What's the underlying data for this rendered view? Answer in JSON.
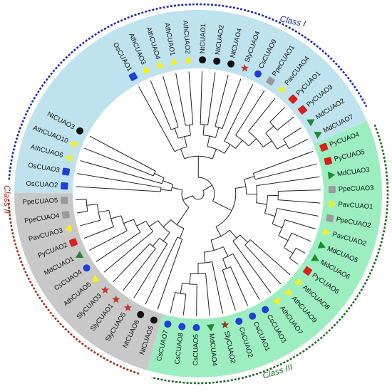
{
  "colors": {
    "class1_bg": "#bfe3ee",
    "class2_bg": "#c8c8c8",
    "class3_bg": "#9ceec0",
    "class1_arc": "#1a2fb0",
    "class2_arc": "#a8331b",
    "class3_arc": "#1f6e1f",
    "branch": "#222222",
    "markers": {
      "circle-blue": "#1f3fd9",
      "square-blue": "#1f3fd9",
      "circle-black": "#111111",
      "triangle-yellow": "#f4ef23",
      "triangle-green": "#1e8a2a",
      "star-red": "#c0392b",
      "star-brown": "#8b3a1a",
      "square-gray": "#9a9a9a",
      "square-red": "#d81e1e"
    }
  },
  "classes": [
    {
      "label": "Class I",
      "color": "#1a2fb0"
    },
    {
      "label": "Class II",
      "color": "#a8331b"
    },
    {
      "label": "Class III",
      "color": "#1f6e1f"
    }
  ],
  "leaves": [
    {
      "name": "OsCUAO1",
      "marker": "square-blue"
    },
    {
      "name": "AthCUAO3",
      "marker": "triangle-yellow"
    },
    {
      "name": "AthCUAO4",
      "marker": "triangle-yellow"
    },
    {
      "name": "AthCUAO1",
      "marker": "triangle-yellow"
    },
    {
      "name": "AthCUAO2",
      "marker": "triangle-yellow"
    },
    {
      "name": "NtCUAO1",
      "marker": "circle-black"
    },
    {
      "name": "NtCUAO2",
      "marker": "circle-black"
    },
    {
      "name": "NtCUAO4",
      "marker": "circle-black"
    },
    {
      "name": "SlyCUAO4",
      "marker": "star-red"
    },
    {
      "name": "CsCUAO9",
      "marker": "circle-blue"
    },
    {
      "name": "PpeCUAO1",
      "marker": "square-gray"
    },
    {
      "name": "PavCUAO4",
      "marker": "triangle-yellow"
    },
    {
      "name": "PyCUAO1",
      "marker": "square-red"
    },
    {
      "name": "PyCUAO3",
      "marker": "square-red"
    },
    {
      "name": "MdCUAO2",
      "marker": "triangle-green"
    },
    {
      "name": "MdCUAO7",
      "marker": "triangle-green"
    },
    {
      "name": "PyCUAO4",
      "marker": "square-red"
    },
    {
      "name": "PyCUAO5",
      "marker": "square-red"
    },
    {
      "name": "MdCUAO3",
      "marker": "triangle-green"
    },
    {
      "name": "PpeCUAO3",
      "marker": "square-gray"
    },
    {
      "name": "PavCUAO1",
      "marker": "triangle-yellow"
    },
    {
      "name": "PpeCUAO2",
      "marker": "square-gray"
    },
    {
      "name": "PavCUAO2",
      "marker": "triangle-yellow"
    },
    {
      "name": "MdCUAO5",
      "marker": "triangle-green"
    },
    {
      "name": "MdCUAO6",
      "marker": "triangle-green"
    },
    {
      "name": "PyCUAO6",
      "marker": "square-red"
    },
    {
      "name": "AthCUAO8",
      "marker": "triangle-yellow"
    },
    {
      "name": "AthCUAO9",
      "marker": "triangle-yellow"
    },
    {
      "name": "AthCUAO7",
      "marker": "triangle-yellow"
    },
    {
      "name": "CsCUAO3",
      "marker": "circle-blue"
    },
    {
      "name": "CsCUAO1",
      "marker": "circle-blue"
    },
    {
      "name": "CsCUAO2",
      "marker": "circle-blue"
    },
    {
      "name": "SlyCUAO2",
      "marker": "star-brown"
    },
    {
      "name": "MdCUAO4",
      "marker": "triangle-green"
    },
    {
      "name": "CsCUAO5",
      "marker": "circle-blue"
    },
    {
      "name": "CsCUAO8",
      "marker": "circle-blue"
    },
    {
      "name": "CsCUAO7",
      "marker": "circle-blue"
    },
    {
      "name": "NtCUAO5",
      "marker": "circle-black"
    },
    {
      "name": "NtCUAO6",
      "marker": "circle-black"
    },
    {
      "name": "SlyCUAO5",
      "marker": "star-red"
    },
    {
      "name": "SlyCUAO1",
      "marker": "star-red"
    },
    {
      "name": "SlyCUAO3",
      "marker": "star-red"
    },
    {
      "name": "AthCUAO5",
      "marker": "triangle-yellow"
    },
    {
      "name": "CsCUAO4",
      "marker": "circle-blue"
    },
    {
      "name": "MdCUAO1",
      "marker": "triangle-green"
    },
    {
      "name": "PyCUAO2",
      "marker": "square-red"
    },
    {
      "name": "PavCUAO3",
      "marker": "triangle-yellow"
    },
    {
      "name": "PpeCUAO4",
      "marker": "square-gray"
    },
    {
      "name": "PpeCUAO5",
      "marker": "square-gray"
    },
    {
      "name": "OsCUAO2",
      "marker": "square-blue"
    },
    {
      "name": "OsCUAO3",
      "marker": "square-blue"
    },
    {
      "name": "AthCUAO6",
      "marker": "triangle-yellow"
    },
    {
      "name": "AthCUAO10",
      "marker": "triangle-yellow"
    },
    {
      "name": "NtCUAO3",
      "marker": "circle-black"
    }
  ]
}
